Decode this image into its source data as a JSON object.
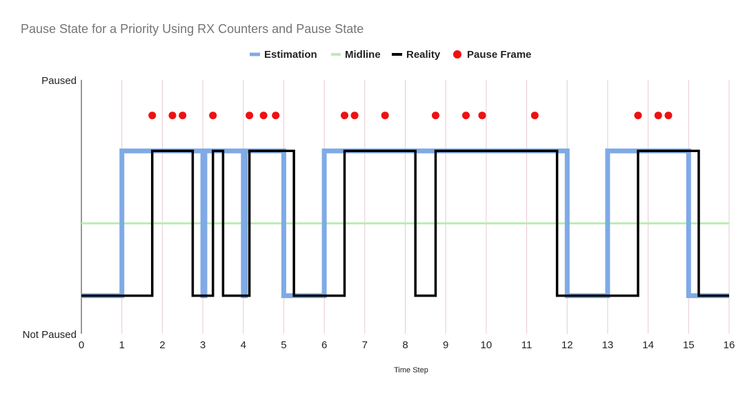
{
  "chart_data": {
    "type": "line",
    "title": "Pause State for a Priority Using RX Counters and Pause State",
    "xlabel": "Time Step",
    "ylabel": "",
    "xlim": [
      0,
      16
    ],
    "x_ticks": [
      "0",
      "1",
      "2",
      "3",
      "4",
      "5",
      "6",
      "7",
      "8",
      "9",
      "10",
      "11",
      "12",
      "13",
      "14",
      "15",
      "16"
    ],
    "y_tick_labels": [
      "Not Paused",
      "Paused"
    ],
    "ylim": [
      0,
      1
    ],
    "grid": "vertical",
    "legend_position": "top",
    "series": [
      {
        "name": "Estimation",
        "color": "#7faae6",
        "step": true,
        "points": [
          [
            0,
            0.15
          ],
          [
            1,
            0.15
          ],
          [
            1,
            0.72
          ],
          [
            3,
            0.72
          ],
          [
            3,
            0.15
          ],
          [
            3.05,
            0.15
          ],
          [
            3.05,
            0.72
          ],
          [
            4,
            0.72
          ],
          [
            4,
            0.15
          ],
          [
            4.05,
            0.15
          ],
          [
            4.05,
            0.72
          ],
          [
            5,
            0.72
          ],
          [
            5,
            0.15
          ],
          [
            6,
            0.15
          ],
          [
            6,
            0.72
          ],
          [
            12,
            0.72
          ],
          [
            12,
            0.15
          ],
          [
            13,
            0.15
          ],
          [
            13,
            0.72
          ],
          [
            15,
            0.72
          ],
          [
            15,
            0.15
          ],
          [
            16,
            0.15
          ]
        ]
      },
      {
        "name": "Midline",
        "color": "#b7f0b0",
        "points": [
          [
            0,
            0.435
          ],
          [
            16,
            0.435
          ]
        ]
      },
      {
        "name": "Reality",
        "color": "#000000",
        "step": true,
        "points": [
          [
            0,
            0.15
          ],
          [
            1.75,
            0.15
          ],
          [
            1.75,
            0.72
          ],
          [
            2.75,
            0.72
          ],
          [
            2.75,
            0.15
          ],
          [
            3.25,
            0.15
          ],
          [
            3.25,
            0.72
          ],
          [
            3.5,
            0.72
          ],
          [
            3.5,
            0.15
          ],
          [
            4.15,
            0.15
          ],
          [
            4.15,
            0.72
          ],
          [
            5.25,
            0.72
          ],
          [
            5.25,
            0.15
          ],
          [
            6.5,
            0.15
          ],
          [
            6.5,
            0.72
          ],
          [
            8.25,
            0.72
          ],
          [
            8.25,
            0.15
          ],
          [
            8.75,
            0.15
          ],
          [
            8.75,
            0.72
          ],
          [
            11.75,
            0.72
          ],
          [
            11.75,
            0.15
          ],
          [
            13.75,
            0.15
          ],
          [
            13.75,
            0.72
          ],
          [
            15.25,
            0.72
          ],
          [
            15.25,
            0.15
          ],
          [
            16,
            0.15
          ]
        ]
      },
      {
        "name": "Pause Frame",
        "color": "#ee1111",
        "marker": "dot",
        "x": [
          1.75,
          2.25,
          2.5,
          3.25,
          4.15,
          4.5,
          4.8,
          6.5,
          6.75,
          7.5,
          8.75,
          9.5,
          9.9,
          11.2,
          13.75,
          14.25,
          14.5
        ],
        "y": [
          0.86,
          0.86,
          0.86,
          0.86,
          0.86,
          0.86,
          0.86,
          0.86,
          0.86,
          0.86,
          0.86,
          0.86,
          0.86,
          0.86,
          0.86,
          0.86,
          0.86
        ]
      }
    ]
  }
}
